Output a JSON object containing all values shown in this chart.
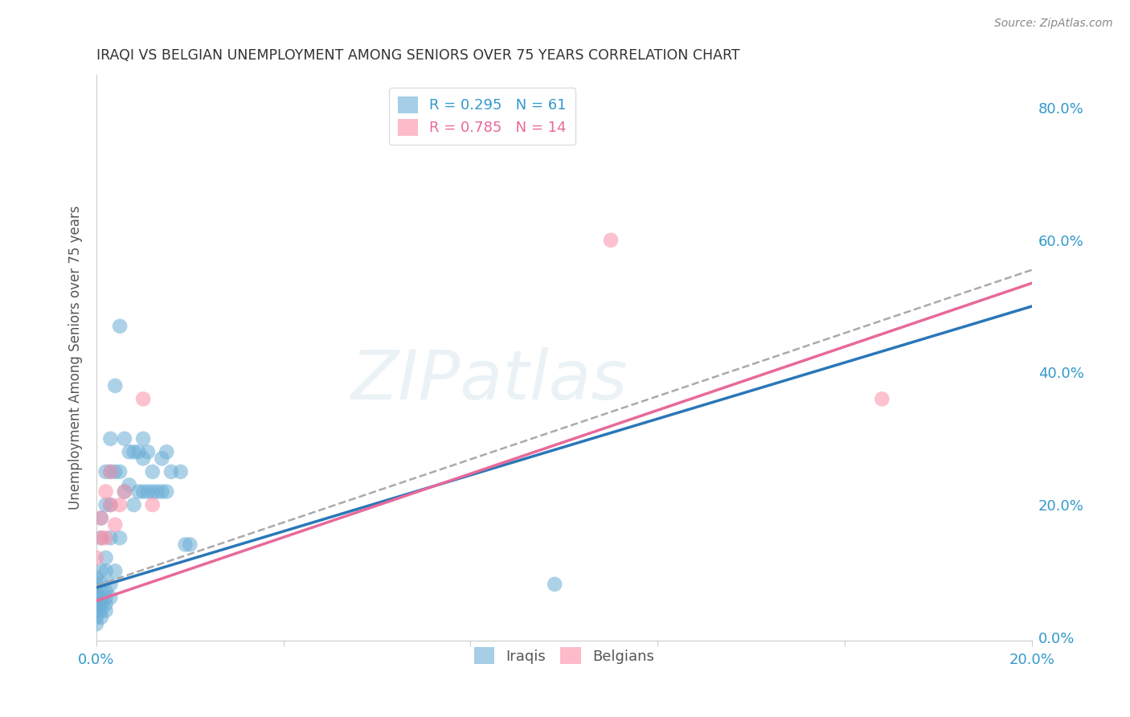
{
  "title": "IRAQI VS BELGIAN UNEMPLOYMENT AMONG SENIORS OVER 75 YEARS CORRELATION CHART",
  "source": "Source: ZipAtlas.com",
  "ylabel": "Unemployment Among Seniors over 75 years",
  "iraqi_color": "#6baed6",
  "belgian_color": "#fc8fa8",
  "iraqi_R": 0.295,
  "iraqi_N": 61,
  "belgian_R": 0.785,
  "belgian_N": 14,
  "watermark": "ZIPatlas",
  "watermark_color_zip": "#c8dce8",
  "watermark_color_atlas": "#aac8dc",
  "xlim": [
    0.0,
    0.2
  ],
  "ylim": [
    -0.005,
    0.85
  ],
  "xtick_positions": [
    0.0,
    0.04,
    0.08,
    0.12,
    0.16,
    0.2
  ],
  "xtick_labels": [
    "0.0%",
    "",
    "",
    "",
    "",
    "20.0%"
  ],
  "ytick_right_positions": [
    0.0,
    0.2,
    0.4,
    0.6,
    0.8
  ],
  "ytick_right_labels": [
    "0.0%",
    "20.0%",
    "40.0%",
    "60.0%",
    "80.0%"
  ],
  "iraqi_x": [
    0.0,
    0.0,
    0.0,
    0.0,
    0.0,
    0.0,
    0.0,
    0.0,
    0.001,
    0.001,
    0.001,
    0.001,
    0.001,
    0.001,
    0.001,
    0.001,
    0.002,
    0.002,
    0.002,
    0.002,
    0.002,
    0.002,
    0.002,
    0.002,
    0.003,
    0.003,
    0.003,
    0.003,
    0.003,
    0.003,
    0.004,
    0.004,
    0.004,
    0.005,
    0.005,
    0.005,
    0.006,
    0.006,
    0.007,
    0.007,
    0.008,
    0.008,
    0.009,
    0.009,
    0.01,
    0.01,
    0.01,
    0.011,
    0.011,
    0.012,
    0.012,
    0.013,
    0.014,
    0.014,
    0.015,
    0.015,
    0.016,
    0.018,
    0.019,
    0.02,
    0.098
  ],
  "iraqi_y": [
    0.02,
    0.03,
    0.04,
    0.05,
    0.06,
    0.07,
    0.08,
    0.09,
    0.03,
    0.04,
    0.05,
    0.06,
    0.08,
    0.1,
    0.15,
    0.18,
    0.04,
    0.05,
    0.06,
    0.07,
    0.1,
    0.12,
    0.2,
    0.25,
    0.06,
    0.08,
    0.15,
    0.2,
    0.25,
    0.3,
    0.1,
    0.25,
    0.38,
    0.15,
    0.25,
    0.47,
    0.22,
    0.3,
    0.23,
    0.28,
    0.2,
    0.28,
    0.22,
    0.28,
    0.22,
    0.27,
    0.3,
    0.22,
    0.28,
    0.22,
    0.25,
    0.22,
    0.22,
    0.27,
    0.22,
    0.28,
    0.25,
    0.25,
    0.14,
    0.14,
    0.08
  ],
  "belgian_x": [
    0.0,
    0.001,
    0.001,
    0.002,
    0.002,
    0.003,
    0.003,
    0.004,
    0.005,
    0.006,
    0.01,
    0.012,
    0.168,
    0.11
  ],
  "belgian_y": [
    0.12,
    0.15,
    0.18,
    0.15,
    0.22,
    0.2,
    0.25,
    0.17,
    0.2,
    0.22,
    0.36,
    0.2,
    0.36,
    0.6
  ],
  "iraqi_trend_x": [
    0.0,
    0.2
  ],
  "iraqi_trend_y": [
    0.075,
    0.5
  ],
  "belgian_trend_x": [
    0.0,
    0.2
  ],
  "belgian_trend_y": [
    0.055,
    0.535
  ],
  "gray_trend_x": [
    0.0,
    0.2
  ],
  "gray_trend_y": [
    0.078,
    0.555
  ]
}
